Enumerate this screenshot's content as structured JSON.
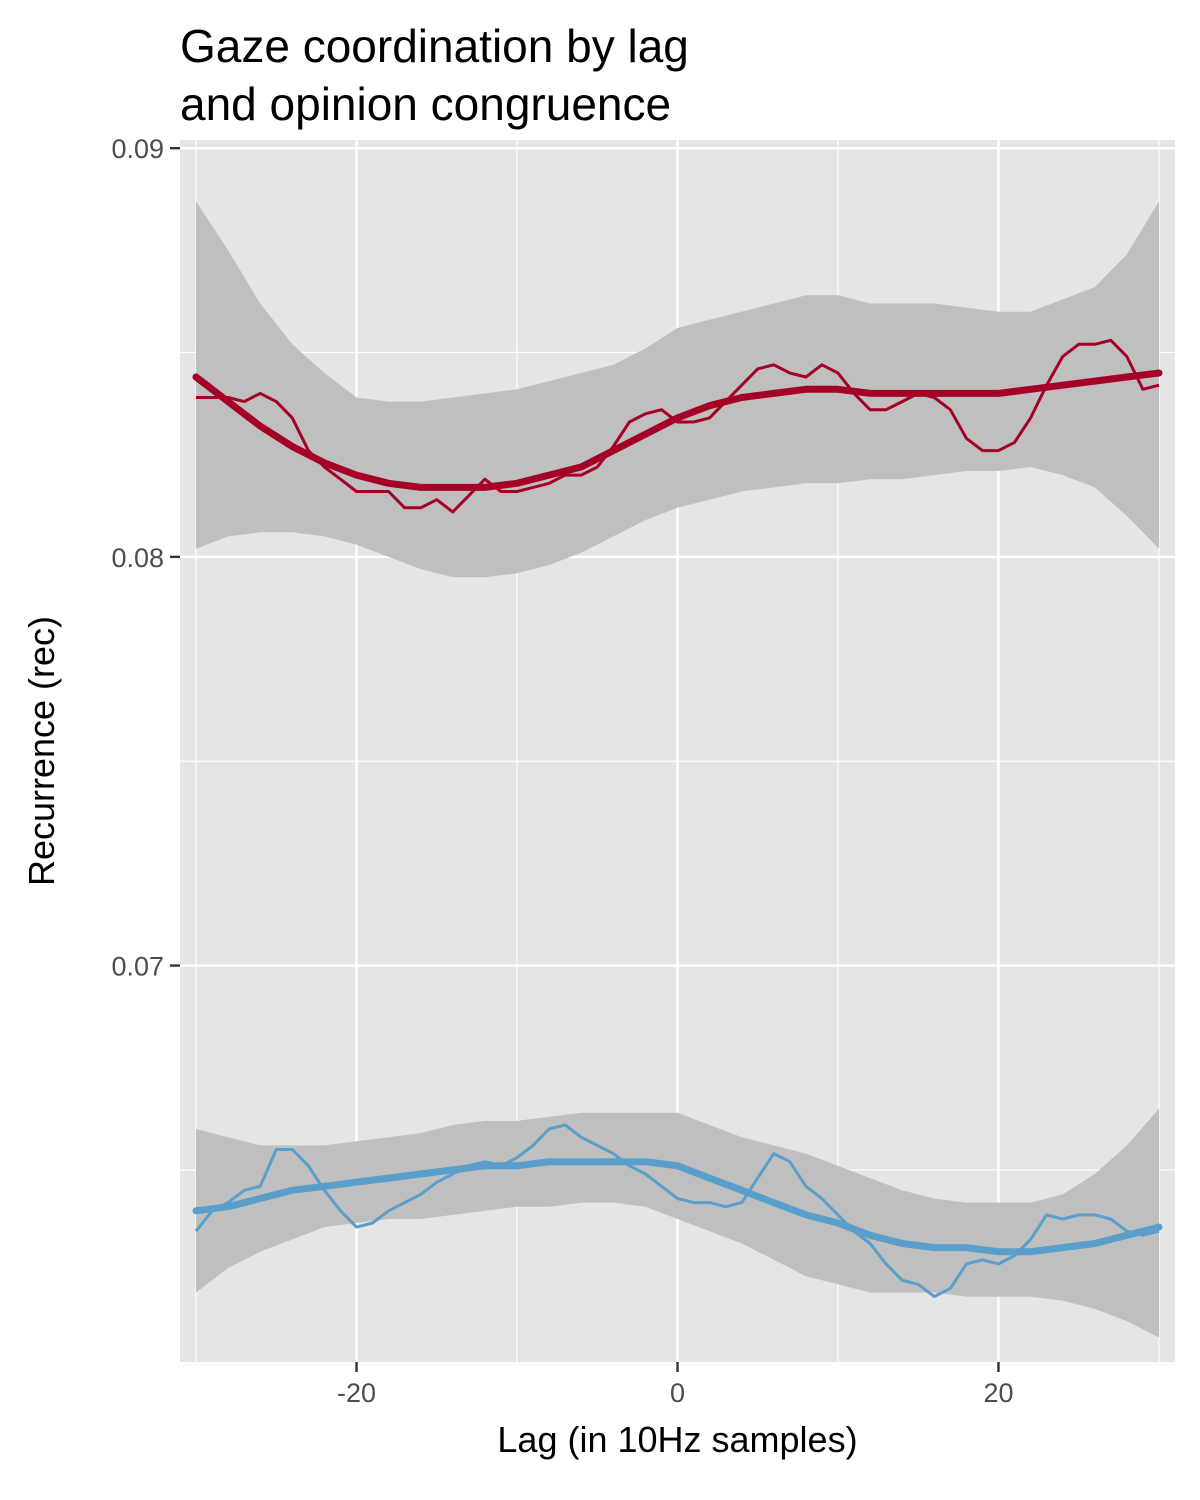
{
  "chart_data": {
    "type": "line",
    "title": [
      "Gaze coordination by lag",
      "and opinion congruence"
    ],
    "xlabel": "Lag (in 10Hz samples)",
    "ylabel": "Recurrence (rec)",
    "xlim": [
      -31,
      31
    ],
    "ylim": [
      0.0603,
      0.0902
    ],
    "x_ticks": [
      -20,
      0,
      20
    ],
    "x_tick_labels": [
      "-20",
      "0",
      "20"
    ],
    "y_ticks": [
      0.07,
      0.08,
      0.09
    ],
    "y_tick_labels": [
      "0.07",
      "0.08",
      "0.09"
    ],
    "grid": true,
    "legend": "none",
    "band_color": "#bfbfbf",
    "panel_color": "#e5e5e5",
    "series": [
      {
        "color": "#a50026",
        "raw": {
          "x": [
            -30,
            -29,
            -28,
            -27,
            -26,
            -25,
            -24,
            -23,
            -22,
            -21,
            -20,
            -19,
            -18,
            -17,
            -16,
            -15,
            -14,
            -13,
            -12,
            -11,
            -10,
            -9,
            -8,
            -7,
            -6,
            -5,
            -4,
            -3,
            -2,
            -1,
            0,
            1,
            2,
            3,
            4,
            5,
            6,
            7,
            8,
            9,
            10,
            11,
            12,
            13,
            14,
            15,
            16,
            17,
            18,
            19,
            20,
            21,
            22,
            23,
            24,
            25,
            26,
            27,
            28,
            29,
            30
          ],
          "y": [
            0.0839,
            0.0839,
            0.0839,
            0.0838,
            0.084,
            0.0838,
            0.0834,
            0.0826,
            0.0822,
            0.0819,
            0.0816,
            0.0816,
            0.0816,
            0.0812,
            0.0812,
            0.0814,
            0.0811,
            0.0815,
            0.0819,
            0.0816,
            0.0816,
            0.0817,
            0.0818,
            0.082,
            0.082,
            0.0822,
            0.0827,
            0.0833,
            0.0835,
            0.0836,
            0.0833,
            0.0833,
            0.0834,
            0.0838,
            0.0842,
            0.0846,
            0.0847,
            0.0845,
            0.0844,
            0.0847,
            0.0845,
            0.084,
            0.0836,
            0.0836,
            0.0838,
            0.084,
            0.0839,
            0.0836,
            0.0829,
            0.0826,
            0.0826,
            0.0828,
            0.0834,
            0.0842,
            0.0849,
            0.0852,
            0.0852,
            0.0853,
            0.0849,
            0.0841,
            0.0842
          ]
        },
        "smooth": {
          "x": [
            -30,
            -28,
            -26,
            -24,
            -22,
            -20,
            -18,
            -16,
            -14,
            -12,
            -10,
            -8,
            -6,
            -4,
            -2,
            0,
            2,
            4,
            6,
            8,
            10,
            12,
            14,
            16,
            18,
            20,
            22,
            24,
            26,
            28,
            30
          ],
          "y": [
            0.0844,
            0.0838,
            0.0832,
            0.0827,
            0.0823,
            0.082,
            0.0818,
            0.0817,
            0.0817,
            0.0817,
            0.0818,
            0.082,
            0.0822,
            0.0826,
            0.083,
            0.0834,
            0.0837,
            0.0839,
            0.084,
            0.0841,
            0.0841,
            0.084,
            0.084,
            0.084,
            0.084,
            0.084,
            0.0841,
            0.0842,
            0.0843,
            0.0844,
            0.0845
          ],
          "lower": [
            0.0802,
            0.0805,
            0.0806,
            0.0806,
            0.0805,
            0.0803,
            0.08,
            0.0797,
            0.0795,
            0.0795,
            0.0796,
            0.0798,
            0.0801,
            0.0805,
            0.0809,
            0.0812,
            0.0814,
            0.0816,
            0.0817,
            0.0818,
            0.0818,
            0.0819,
            0.0819,
            0.082,
            0.0821,
            0.0821,
            0.0822,
            0.082,
            0.0817,
            0.081,
            0.0802
          ],
          "upper": [
            0.0887,
            0.0875,
            0.0862,
            0.0852,
            0.0845,
            0.0839,
            0.0838,
            0.0838,
            0.0839,
            0.084,
            0.0841,
            0.0843,
            0.0845,
            0.0847,
            0.0851,
            0.0856,
            0.0858,
            0.086,
            0.0862,
            0.0864,
            0.0864,
            0.0862,
            0.0862,
            0.0862,
            0.0861,
            0.086,
            0.086,
            0.0863,
            0.0866,
            0.0874,
            0.0887
          ]
        }
      },
      {
        "color": "#5a9ecb",
        "raw": {
          "x": [
            -30,
            -29,
            -28,
            -27,
            -26,
            -25,
            -24,
            -23,
            -22,
            -21,
            -20,
            -19,
            -18,
            -17,
            -16,
            -15,
            -14,
            -13,
            -12,
            -11,
            -10,
            -9,
            -8,
            -7,
            -6,
            -5,
            -4,
            -3,
            -2,
            -1,
            0,
            1,
            2,
            3,
            4,
            5,
            6,
            7,
            8,
            9,
            10,
            11,
            12,
            13,
            14,
            15,
            16,
            17,
            18,
            19,
            20,
            21,
            22,
            23,
            24,
            25,
            26,
            27,
            28,
            29,
            30
          ],
          "y": [
            0.0635,
            0.064,
            0.0642,
            0.0645,
            0.0646,
            0.0655,
            0.0655,
            0.0651,
            0.0645,
            0.064,
            0.0636,
            0.0637,
            0.064,
            0.0642,
            0.0644,
            0.0647,
            0.0649,
            0.0651,
            0.0652,
            0.0651,
            0.0653,
            0.0656,
            0.066,
            0.0661,
            0.0658,
            0.0656,
            0.0654,
            0.0651,
            0.0649,
            0.0646,
            0.0643,
            0.0642,
            0.0642,
            0.0641,
            0.0642,
            0.0648,
            0.0654,
            0.0652,
            0.0646,
            0.0643,
            0.0639,
            0.0635,
            0.0632,
            0.0627,
            0.0623,
            0.0622,
            0.0619,
            0.0621,
            0.0627,
            0.0628,
            0.0627,
            0.0629,
            0.0633,
            0.0639,
            0.0638,
            0.0639,
            0.0639,
            0.0638,
            0.0635,
            0.0634,
            0.0635
          ]
        },
        "smooth": {
          "x": [
            -30,
            -28,
            -26,
            -24,
            -22,
            -20,
            -18,
            -16,
            -14,
            -12,
            -10,
            -8,
            -6,
            -4,
            -2,
            0,
            2,
            4,
            6,
            8,
            10,
            12,
            14,
            16,
            18,
            20,
            22,
            24,
            26,
            28,
            30
          ],
          "y": [
            0.064,
            0.0641,
            0.0643,
            0.0645,
            0.0646,
            0.0647,
            0.0648,
            0.0649,
            0.065,
            0.0651,
            0.0651,
            0.0652,
            0.0652,
            0.0652,
            0.0652,
            0.0651,
            0.0648,
            0.0645,
            0.0642,
            0.0639,
            0.0637,
            0.0634,
            0.0632,
            0.0631,
            0.0631,
            0.063,
            0.063,
            0.0631,
            0.0632,
            0.0634,
            0.0636
          ],
          "lower": [
            0.062,
            0.0626,
            0.063,
            0.0633,
            0.0636,
            0.0637,
            0.0638,
            0.0638,
            0.0639,
            0.064,
            0.0641,
            0.0641,
            0.0642,
            0.0642,
            0.0641,
            0.0638,
            0.0635,
            0.0632,
            0.0628,
            0.0624,
            0.0622,
            0.062,
            0.062,
            0.062,
            0.0619,
            0.0619,
            0.0619,
            0.0618,
            0.0616,
            0.0613,
            0.0609
          ],
          "upper": [
            0.066,
            0.0658,
            0.0656,
            0.0656,
            0.0656,
            0.0657,
            0.0658,
            0.0659,
            0.0661,
            0.0662,
            0.0662,
            0.0663,
            0.0664,
            0.0664,
            0.0664,
            0.0664,
            0.0661,
            0.0658,
            0.0656,
            0.0654,
            0.0651,
            0.0648,
            0.0645,
            0.0643,
            0.0642,
            0.0642,
            0.0642,
            0.0644,
            0.0649,
            0.0656,
            0.0665
          ]
        }
      }
    ]
  }
}
